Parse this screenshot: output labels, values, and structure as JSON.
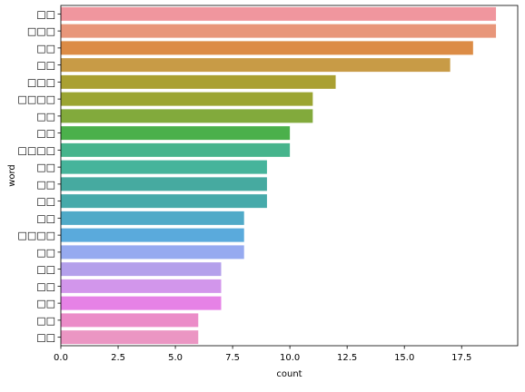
{
  "chart_data": {
    "type": "bar",
    "orientation": "horizontal",
    "title": "",
    "xlabel": "count",
    "ylabel": "word",
    "xlim": [
      0,
      19.95
    ],
    "xticks": [
      0,
      2.5,
      5,
      7.5,
      10,
      12.5,
      15,
      17.5
    ],
    "xtick_labels": [
      "0.0",
      "2.5",
      "5.0",
      "7.5",
      "10.0",
      "12.5",
      "15.0",
      "17.5"
    ],
    "grid": false,
    "legend": "none",
    "categories": [
      "□□",
      "□□□",
      "□□",
      "□□",
      "□□□",
      "□□□□",
      "□□",
      "□□",
      "□□□□",
      "□□",
      "□□",
      "□□",
      "□□",
      "□□□□",
      "□□",
      "□□",
      "□□",
      "□□",
      "□□",
      "□□"
    ],
    "values": [
      19,
      19,
      18,
      17,
      12,
      11,
      11,
      10,
      10,
      9,
      9,
      9,
      8,
      8,
      8,
      7,
      7,
      7,
      6,
      6
    ],
    "colors": [
      "#f0969e",
      "#e8967a",
      "#dc8c46",
      "#c89b46",
      "#aaa032",
      "#9ba532",
      "#82aa3c",
      "#4bb04b",
      "#46b48c",
      "#46b49b",
      "#46aaa0",
      "#46aaaa",
      "#50aac8",
      "#5aaadc",
      "#96aaf0",
      "#b4a0eb",
      "#d296eb",
      "#e682e6",
      "#eb8cc8",
      "#eb96c3"
    ]
  }
}
